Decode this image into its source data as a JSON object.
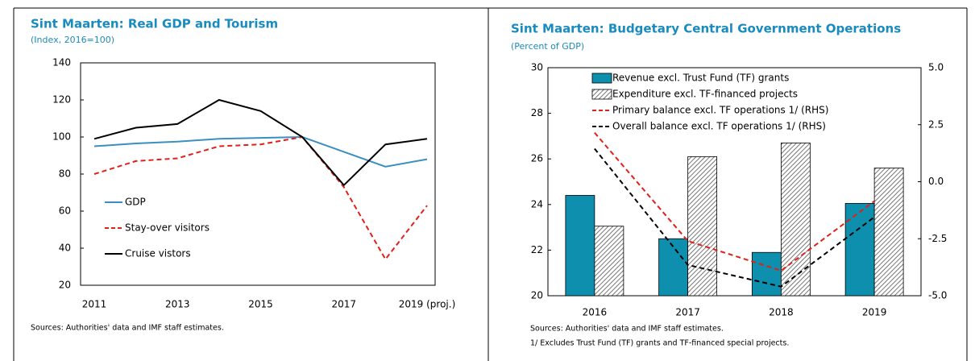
{
  "chart_data": [
    {
      "type": "line",
      "title": "Sint Maarten: Real GDP and Tourism",
      "subtitle": "(Index, 2016=100)",
      "categories": [
        "2011",
        null,
        "2013",
        null,
        "2015",
        null,
        "2017",
        null,
        "2019 (proj.)"
      ],
      "series": [
        {
          "name": "GDP",
          "color": "#3a8fc0",
          "dash": false,
          "values": [
            95,
            96.5,
            97.5,
            99,
            99.5,
            100,
            92,
            84,
            88
          ]
        },
        {
          "name": "Stay-over visitors",
          "color": "#e0201b",
          "dash": true,
          "values": [
            80,
            87,
            88.5,
            95,
            96,
            100,
            73,
            34,
            63
          ]
        },
        {
          "name": "Cruise vistors",
          "color": "#000000",
          "dash": false,
          "values": [
            99,
            105,
            107,
            120,
            114,
            100,
            74,
            96,
            99
          ]
        }
      ],
      "ylim": [
        20,
        140
      ],
      "yticks": [
        20,
        40,
        60,
        80,
        100,
        120,
        140
      ],
      "source": "Sources: Authorities' data and IMF staff estimates."
    },
    {
      "type": "bar",
      "title": "Sint Maarten: Budgetary Central Government Operations",
      "subtitle": "(Percent of GDP)",
      "categories": [
        "2016",
        "2017",
        "2018",
        "2019"
      ],
      "series": [
        {
          "name": "Revenue excl. Trust Fund (TF) grants",
          "type": "bar",
          "color": "#0e8fad",
          "hatch": false,
          "values": [
            24.4,
            22.5,
            21.9,
            24.05
          ]
        },
        {
          "name": "Expenditure excl. TF-financed projects",
          "type": "bar",
          "color": "#555555",
          "hatch": true,
          "values": [
            23.05,
            26.1,
            26.7,
            25.6
          ]
        },
        {
          "name": "Primary balance excl. TF operations 1/ (RHS)",
          "type": "line",
          "axis": "y2",
          "color": "#e0201b",
          "dash": true,
          "values": [
            2.15,
            -2.6,
            -3.9,
            -0.85
          ]
        },
        {
          "name": "Overall balance excl. TF operations 1/ (RHS)",
          "type": "line",
          "axis": "y2",
          "color": "#000000",
          "dash": true,
          "values": [
            1.45,
            -3.65,
            -4.6,
            -1.55
          ]
        }
      ],
      "ylim": [
        20,
        30
      ],
      "yticks": [
        20,
        22,
        24,
        26,
        28,
        30
      ],
      "y2lim": [
        -5,
        5
      ],
      "y2ticks": [
        {
          "value": -5,
          "label": "-5.0"
        },
        {
          "value": -2.5,
          "label": "-2.5"
        },
        {
          "value": 0,
          "label": "0.0"
        },
        {
          "value": 2.5,
          "label": "2.5"
        },
        {
          "value": 5,
          "label": "5.0"
        }
      ],
      "source": "Sources: Authorities' data and IMF staff estimates.",
      "note": "1/ Excludes Trust Fund (TF) grants and TF-financed special projects."
    }
  ]
}
